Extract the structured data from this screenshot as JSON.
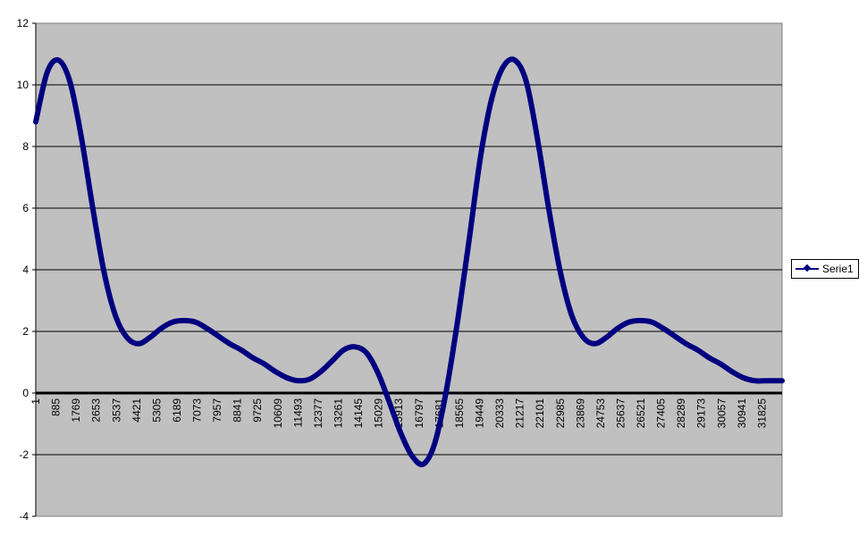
{
  "chart_data": {
    "type": "line",
    "title": "",
    "xlabel": "",
    "ylabel": "",
    "ylim": [
      -4,
      12
    ],
    "yticks": [
      -4,
      -2,
      0,
      2,
      4,
      6,
      8,
      10,
      12
    ],
    "xlim": [
      1,
      32709
    ],
    "xtick_labels": [
      "1",
      "885",
      "1769",
      "2653",
      "3537",
      "4421",
      "5305",
      "6189",
      "7073",
      "7957",
      "8841",
      "9725",
      "10609",
      "11493",
      "12377",
      "13261",
      "14145",
      "15029",
      "15913",
      "16797",
      "17681",
      "18565",
      "19449",
      "20333",
      "21217",
      "22101",
      "22985",
      "23869",
      "24753",
      "25637",
      "26521",
      "27405",
      "28289",
      "29173",
      "30057",
      "30941",
      "31825"
    ],
    "grid": "horizontal",
    "legend_position": "right",
    "series": [
      {
        "name": "Serie1",
        "color": "#000080",
        "x": [
          1,
          500,
          1000,
          1500,
          2000,
          2500,
          3000,
          3500,
          4000,
          4500,
          5000,
          5500,
          6000,
          6500,
          7000,
          7500,
          8000,
          8500,
          9000,
          9500,
          10000,
          10500,
          11000,
          11500,
          12000,
          12500,
          13000,
          13500,
          14000,
          14500,
          15000,
          15500,
          16000,
          16500,
          17000,
          17500,
          18000,
          18500,
          19000,
          19500,
          20000,
          20500,
          21000,
          21500,
          22000,
          22500,
          23000,
          23500,
          24000,
          24500,
          25000,
          25500,
          26000,
          26500,
          27000,
          27500,
          28000,
          28500,
          29000,
          29500,
          30000,
          30500,
          31000,
          31500,
          32000,
          32500,
          32709
        ],
        "values": [
          8.8,
          10.4,
          10.8,
          10.1,
          8.3,
          6.0,
          3.9,
          2.5,
          1.8,
          1.6,
          1.8,
          2.1,
          2.3,
          2.35,
          2.3,
          2.1,
          1.85,
          1.6,
          1.4,
          1.15,
          0.95,
          0.7,
          0.5,
          0.4,
          0.45,
          0.7,
          1.05,
          1.4,
          1.5,
          1.3,
          0.65,
          -0.3,
          -1.3,
          -2.05,
          -2.3,
          -1.6,
          0.1,
          2.4,
          5.0,
          7.7,
          9.6,
          10.6,
          10.8,
          10.1,
          8.2,
          5.9,
          3.9,
          2.5,
          1.8,
          1.6,
          1.8,
          2.1,
          2.3,
          2.35,
          2.3,
          2.1,
          1.85,
          1.6,
          1.4,
          1.15,
          0.95,
          0.7,
          0.5,
          0.4,
          0.4,
          0.4,
          0.4
        ]
      }
    ]
  }
}
